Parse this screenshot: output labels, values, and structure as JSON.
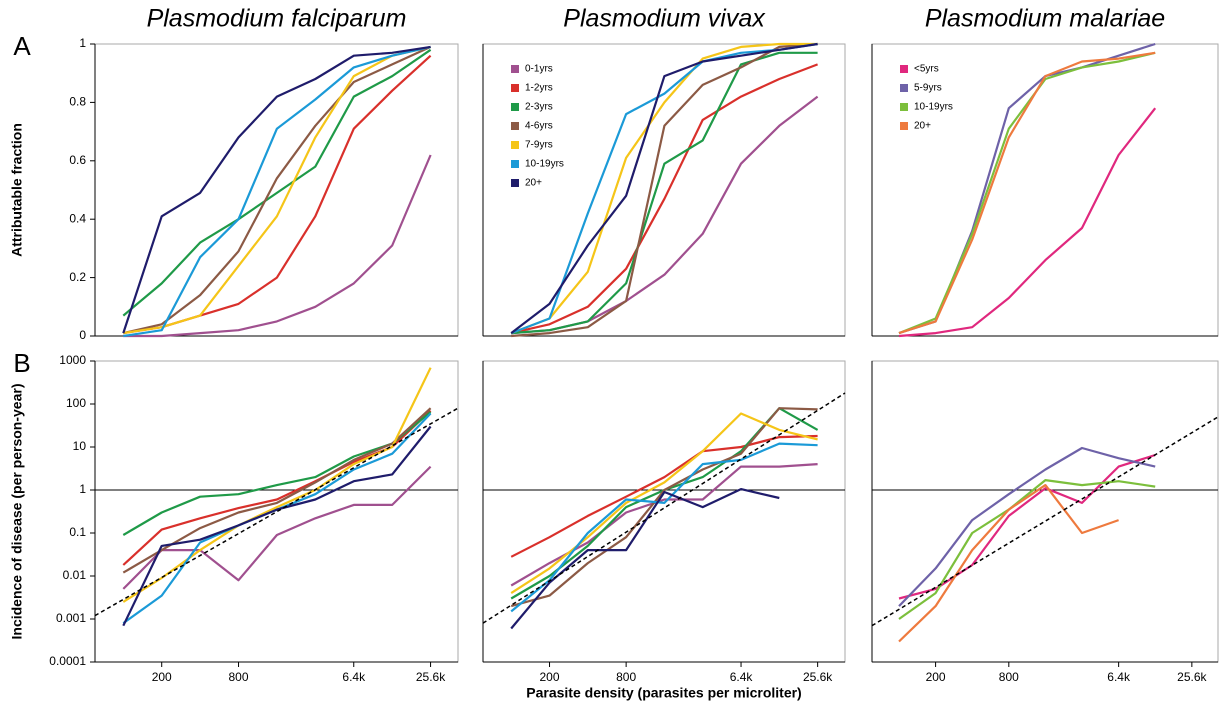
{
  "chart_data": [
    {
      "type": "line",
      "title": "Plasmodium falciparum",
      "panel_label": "A",
      "ylabel": "Attributable fraction",
      "x": [
        100,
        200,
        400,
        800,
        1600,
        3200,
        6400,
        12800,
        25600
      ],
      "xlim": [
        60,
        42000
      ],
      "xlog": true,
      "ylim": [
        0,
        1
      ],
      "yticks": [
        0,
        0.2,
        0.4,
        0.6,
        0.8,
        1
      ],
      "series": [
        {
          "color": "#a0508f",
          "values": [
            0,
            0,
            0.01,
            0.02,
            0.05,
            0.1,
            0.18,
            0.31,
            0.62
          ]
        },
        {
          "color": "#d9302b",
          "values": [
            0.01,
            0.03,
            0.07,
            0.11,
            0.2,
            0.41,
            0.71,
            0.84,
            0.96
          ]
        },
        {
          "color": "#1f9a48",
          "values": [
            0.07,
            0.18,
            0.32,
            0.4,
            0.49,
            0.58,
            0.82,
            0.89,
            0.98
          ]
        },
        {
          "color": "#8c5a45",
          "values": [
            0.01,
            0.04,
            0.14,
            0.29,
            0.54,
            0.72,
            0.87,
            0.93,
            0.99
          ]
        },
        {
          "color": "#f5c518",
          "values": [
            0.01,
            0.03,
            0.07,
            0.24,
            0.41,
            0.68,
            0.89,
            0.96,
            0.99
          ]
        },
        {
          "color": "#1b9ad7",
          "values": [
            0,
            0.02,
            0.27,
            0.4,
            0.71,
            0.81,
            0.92,
            0.96,
            0.99
          ]
        },
        {
          "color": "#1f1c6b",
          "values": [
            0.01,
            0.41,
            0.49,
            0.68,
            0.82,
            0.88,
            0.96,
            0.97,
            0.99
          ]
        }
      ]
    },
    {
      "type": "line",
      "title": "Plasmodium vivax",
      "x": [
        100,
        200,
        400,
        800,
        1600,
        3200,
        6400,
        12800,
        25600
      ],
      "xlim": [
        60,
        42000
      ],
      "xlog": true,
      "ylim": [
        0,
        1
      ],
      "legend": "upper left",
      "series": [
        {
          "name": "0-1yrs",
          "color": "#a0508f",
          "values": [
            0.01,
            0.02,
            0.05,
            0.12,
            0.21,
            0.35,
            0.59,
            0.72,
            0.82
          ]
        },
        {
          "name": "1-2yrs",
          "color": "#d9302b",
          "values": [
            0.01,
            0.04,
            0.1,
            0.23,
            0.47,
            0.74,
            0.82,
            0.88,
            0.93
          ]
        },
        {
          "name": "2-3yrs",
          "color": "#1f9a48",
          "values": [
            0.01,
            0.02,
            0.05,
            0.18,
            0.59,
            0.67,
            0.93,
            0.97,
            0.97
          ]
        },
        {
          "name": "4-6yrs",
          "color": "#8c5a45",
          "values": [
            0,
            0.01,
            0.03,
            0.12,
            0.72,
            0.86,
            0.92,
            0.99,
            1
          ]
        },
        {
          "name": "7-9yrs",
          "color": "#f5c518",
          "values": [
            0.01,
            0.06,
            0.22,
            0.61,
            0.8,
            0.95,
            0.99,
            1,
            1
          ]
        },
        {
          "name": "10-19yrs",
          "color": "#1b9ad7",
          "values": [
            0.01,
            0.06,
            0.42,
            0.76,
            0.83,
            0.94,
            0.97,
            0.98,
            1
          ]
        },
        {
          "name": "20+",
          "color": "#1f1c6b",
          "values": [
            0.01,
            0.11,
            0.31,
            0.48,
            0.89,
            0.94,
            0.96,
            0.98,
            1
          ]
        }
      ]
    },
    {
      "type": "line",
      "title": "Plasmodium malariae",
      "x": [
        100,
        200,
        400,
        800,
        1600,
        3200,
        6400,
        12800
      ],
      "xlim": [
        60,
        42000
      ],
      "xlog": true,
      "ylim": [
        0,
        1
      ],
      "legend": "upper left",
      "series": [
        {
          "name": "<5yrs",
          "color": "#e0287e",
          "values": [
            0,
            0.01,
            0.03,
            0.13,
            0.26,
            0.37,
            0.62,
            0.78
          ]
        },
        {
          "name": "5-9yrs",
          "color": "#6e62a8",
          "values": [
            0.01,
            0.05,
            0.36,
            0.78,
            0.89,
            0.92,
            0.96,
            1
          ]
        },
        {
          "name": "10-19yrs",
          "color": "#7cbf3c",
          "values": [
            0.01,
            0.06,
            0.35,
            0.71,
            0.88,
            0.92,
            0.94,
            0.97
          ]
        },
        {
          "name": "20+",
          "color": "#ee7a3e",
          "values": [
            0.01,
            0.05,
            0.33,
            0.68,
            0.89,
            0.94,
            0.95,
            0.97
          ]
        }
      ]
    },
    {
      "type": "line",
      "panel_label": "B",
      "ylabel": "Incidence of disease (per person-year)",
      "x": [
        100,
        200,
        400,
        800,
        1600,
        3200,
        6400,
        12800,
        25600
      ],
      "xlim": [
        60,
        42000
      ],
      "xlog": true,
      "ylim": [
        0.0001,
        1000
      ],
      "ylog": true,
      "yticks": [
        0.0001,
        0.001,
        0.01,
        0.1,
        1,
        10,
        100,
        1000
      ],
      "xticks": [
        200,
        800,
        {
          "value": 6400,
          "label": "6.4k"
        },
        {
          "value": 25600,
          "label": "25.6k"
        }
      ],
      "reference_line": 1,
      "fit_line": {
        "x": [
          60,
          42000
        ],
        "values": [
          0.0012,
          80
        ]
      },
      "series": [
        {
          "color": "#a0508f",
          "values": [
            0.005,
            0.04,
            0.04,
            0.008,
            0.09,
            0.22,
            0.45,
            0.45,
            3.5
          ]
        },
        {
          "color": "#d9302b",
          "values": [
            0.018,
            0.12,
            0.22,
            0.38,
            0.6,
            1.6,
            4.5,
            10,
            70
          ]
        },
        {
          "color": "#1f9a48",
          "values": [
            0.09,
            0.3,
            0.7,
            0.8,
            1.3,
            2,
            6,
            12,
            65
          ]
        },
        {
          "color": "#8c5a45",
          "values": [
            0.012,
            0.04,
            0.13,
            0.3,
            0.5,
            1.5,
            5,
            12,
            80
          ]
        },
        {
          "color": "#f5c518",
          "values": [
            0.0025,
            0.009,
            0.04,
            0.15,
            0.4,
            1,
            4,
            10,
            700
          ]
        },
        {
          "color": "#1b9ad7",
          "values": [
            0.0008,
            0.0035,
            0.06,
            0.15,
            0.35,
            0.8,
            3,
            7,
            60
          ]
        },
        {
          "color": "#1f1c6b",
          "values": [
            0.0007,
            0.05,
            0.07,
            0.15,
            0.35,
            0.6,
            1.6,
            2.3,
            30
          ]
        }
      ]
    },
    {
      "type": "line",
      "xlabel": "Parasite density (parasites per microliter)",
      "x": [
        100,
        200,
        400,
        800,
        1600,
        3200,
        6400,
        12800,
        25600
      ],
      "xlim": [
        60,
        42000
      ],
      "xlog": true,
      "ylim": [
        0.0001,
        1000
      ],
      "ylog": true,
      "xticks": [
        200,
        800,
        {
          "value": 6400,
          "label": "6.4k"
        },
        {
          "value": 25600,
          "label": "25.6k"
        }
      ],
      "reference_line": 1,
      "fit_line": {
        "x": [
          60,
          42000
        ],
        "values": [
          0.0008,
          180
        ]
      },
      "series": [
        {
          "color": "#a0508f",
          "values": [
            0.006,
            0.02,
            0.06,
            0.3,
            0.6,
            0.6,
            3.5,
            3.5,
            4
          ]
        },
        {
          "color": "#d9302b",
          "values": [
            0.028,
            0.08,
            0.25,
            0.7,
            2,
            8,
            10,
            17,
            18
          ]
        },
        {
          "color": "#1f9a48",
          "values": [
            0.003,
            0.01,
            0.05,
            0.4,
            1,
            2,
            8,
            80,
            25
          ]
        },
        {
          "color": "#8c5a45",
          "values": [
            0.002,
            0.0035,
            0.02,
            0.08,
            1,
            3,
            7,
            80,
            75
          ]
        },
        {
          "color": "#f5c518",
          "values": [
            0.004,
            0.015,
            0.08,
            0.5,
            1.5,
            8,
            60,
            25,
            15
          ]
        },
        {
          "color": "#1b9ad7",
          "values": [
            0.0015,
            0.008,
            0.1,
            0.6,
            0.5,
            4,
            5,
            12,
            11
          ]
        },
        {
          "color": "#1f1c6b",
          "values": [
            0.0006,
            0.007,
            0.04,
            0.04,
            0.9,
            0.4,
            1.05,
            0.65,
            null
          ]
        }
      ]
    },
    {
      "type": "line",
      "x": [
        100,
        200,
        400,
        800,
        1600,
        3200,
        6400,
        12800
      ],
      "xlim": [
        60,
        42000
      ],
      "xlog": true,
      "ylim": [
        0.0001,
        1000
      ],
      "ylog": true,
      "xticks": [
        200,
        800,
        {
          "value": 6400,
          "label": "6.4k"
        },
        {
          "value": 25600,
          "label": "25.6k"
        }
      ],
      "reference_line": 1,
      "fit_line": {
        "x": [
          60,
          42000
        ],
        "values": [
          0.0007,
          50
        ]
      },
      "series": [
        {
          "color": "#e0287e",
          "values": [
            0.003,
            0.005,
            0.018,
            0.25,
            1.1,
            0.5,
            3.5,
            6.5
          ]
        },
        {
          "color": "#6e62a8",
          "values": [
            0.002,
            0.015,
            0.2,
            0.8,
            3,
            9.5,
            5.5,
            3.5
          ]
        },
        {
          "color": "#7cbf3c",
          "values": [
            0.001,
            0.004,
            0.1,
            0.35,
            1.7,
            1.3,
            1.6,
            1.2
          ]
        },
        {
          "color": "#ee7a3e",
          "values": [
            0.0003,
            0.002,
            0.04,
            0.35,
            1.3,
            0.1,
            0.2,
            null
          ]
        }
      ]
    }
  ]
}
